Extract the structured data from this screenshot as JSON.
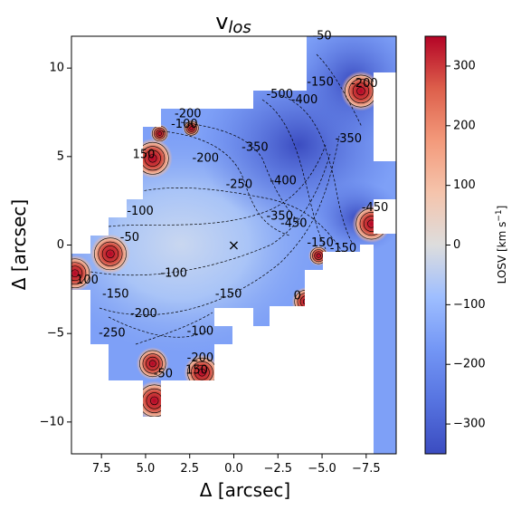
{
  "chart_data": {
    "type": "heatmap",
    "title": "v",
    "title_subscript": "los",
    "xlabel": "Δ  [arcsec]",
    "ylabel": "Δ  [arcsec]",
    "xlim": [
      9.2,
      -9.2
    ],
    "ylim": [
      -11.8,
      11.8
    ],
    "x_inverted": true,
    "x_ticks": [
      7.5,
      5.0,
      2.5,
      0.0,
      -2.5,
      -5.0,
      -7.5
    ],
    "x_tick_labels": [
      "7.5",
      "5.0",
      "2.5",
      "0.0",
      "−2.5",
      "−5.0",
      "−7.5"
    ],
    "y_ticks": [
      10,
      5,
      0,
      -5,
      -10
    ],
    "y_tick_labels": [
      "10",
      "5",
      "0",
      "−5",
      "−10"
    ],
    "colorbar": {
      "label": "LOSV [km s",
      "label_superscript": "−1",
      "label_suffix": "]",
      "range": [
        -350,
        350
      ],
      "ticks": [
        300,
        200,
        100,
        0,
        -100,
        -200,
        -300
      ],
      "tick_labels": [
        "300",
        "200",
        "100",
        "0",
        "−100",
        "−200",
        "−300"
      ],
      "colormap": "coolwarm"
    },
    "center_marker": {
      "x": 0,
      "y": 0,
      "symbol": "×"
    },
    "colors": {
      "low": "#3b4cc0",
      "mid": "#dddddd",
      "high": "#b40426"
    },
    "contour_labels": [
      {
        "text": "-100",
        "x": 5.3,
        "y": 1.9
      },
      {
        "text": "-50",
        "x": 5.9,
        "y": 0.4
      },
      {
        "text": "-100",
        "x": 3.4,
        "y": -1.6
      },
      {
        "text": "-150",
        "x": 6.7,
        "y": -2.8
      },
      {
        "text": "-200",
        "x": 5.1,
        "y": -3.9
      },
      {
        "text": "-250",
        "x": 6.9,
        "y": -5.0
      },
      {
        "text": "-150",
        "x": 0.3,
        "y": -2.8
      },
      {
        "text": "-100",
        "x": 1.9,
        "y": -4.9
      },
      {
        "text": "-200",
        "x": 2.6,
        "y": 7.4
      },
      {
        "text": "-200",
        "x": 1.6,
        "y": 4.9
      },
      {
        "text": "-250",
        "x": -0.3,
        "y": 3.4
      },
      {
        "text": "-350",
        "x": -1.2,
        "y": 5.5
      },
      {
        "text": "-400",
        "x": -2.8,
        "y": 3.6
      },
      {
        "text": "-350",
        "x": -2.6,
        "y": 1.6
      },
      {
        "text": "-450",
        "x": -3.4,
        "y": 1.2
      },
      {
        "text": "-500",
        "x": -2.6,
        "y": 8.5
      },
      {
        "text": "-400",
        "x": -4.0,
        "y": 8.2
      },
      {
        "text": "-350",
        "x": -6.5,
        "y": 6.0
      },
      {
        "text": "-150",
        "x": -4.9,
        "y": 9.2
      },
      {
        "text": "-200",
        "x": -7.4,
        "y": 9.1
      },
      {
        "text": "-150",
        "x": -4.9,
        "y": 0.1
      },
      {
        "text": "-150",
        "x": -6.2,
        "y": -0.2
      },
      {
        "text": "0",
        "x": -3.6,
        "y": -2.9
      },
      {
        "text": "-450",
        "x": -8.0,
        "y": 2.1
      },
      {
        "text": "-50",
        "x": 4.0,
        "y": -7.3
      },
      {
        "text": "-200",
        "x": 1.9,
        "y": -6.4
      },
      {
        "text": "100",
        "x": 8.3,
        "y": -2.0
      },
      {
        "text": "150",
        "x": 5.1,
        "y": 5.1
      },
      {
        "text": "-50",
        "x": -5.0,
        "y": 11.8
      },
      {
        "text": "-100",
        "x": 2.8,
        "y": 6.8
      },
      {
        "text": "150",
        "x": 2.1,
        "y": -7.1
      }
    ],
    "hotspots": [
      {
        "x": 7.0,
        "y": -0.5,
        "value": 350
      },
      {
        "x": 9.0,
        "y": -1.6,
        "value": 300
      },
      {
        "x": 4.6,
        "y": 4.9,
        "value": 350
      },
      {
        "x": -7.2,
        "y": 8.7,
        "value": 350
      },
      {
        "x": -7.8,
        "y": 1.2,
        "value": 330
      },
      {
        "x": 4.5,
        "y": -8.8,
        "value": 350
      },
      {
        "x": 4.6,
        "y": -6.7,
        "value": 250
      },
      {
        "x": 1.8,
        "y": -7.2,
        "value": 300
      },
      {
        "x": -4.1,
        "y": -3.2,
        "value": 200
      },
      {
        "x": -4.8,
        "y": -0.6,
        "value": 80
      },
      {
        "x": 4.2,
        "y": 6.3,
        "value": 60
      },
      {
        "x": 2.4,
        "y": 6.6,
        "value": 40
      }
    ]
  }
}
